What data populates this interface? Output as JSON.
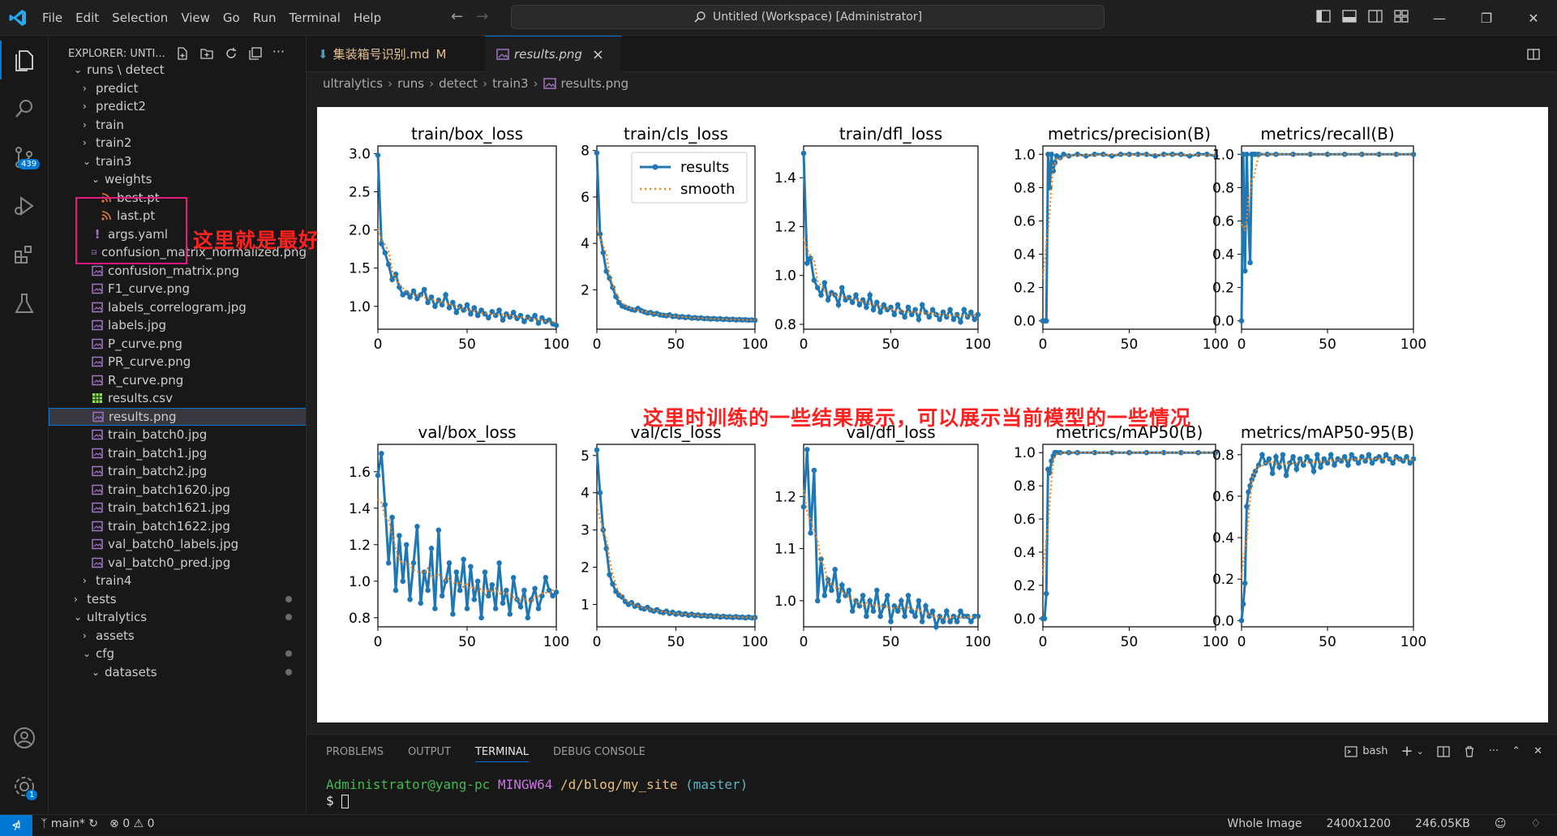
{
  "menu": [
    "File",
    "Edit",
    "Selection",
    "View",
    "Go",
    "Run",
    "Terminal",
    "Help"
  ],
  "search_title": "Untitled (Workspace) [Administrator]",
  "activity": {
    "scm_badge": "439",
    "settings_badge": "1"
  },
  "explorer": {
    "title": "EXPLORER: UNTI...",
    "rows": [
      {
        "label": "runs \\ detect",
        "indent": 1,
        "kind": "folder-open"
      },
      {
        "label": "predict",
        "indent": 2,
        "kind": "folder"
      },
      {
        "label": "predict2",
        "indent": 2,
        "kind": "folder"
      },
      {
        "label": "train",
        "indent": 2,
        "kind": "folder"
      },
      {
        "label": "train2",
        "indent": 2,
        "kind": "folder"
      },
      {
        "label": "train3",
        "indent": 2,
        "kind": "folder-open"
      },
      {
        "label": "weights",
        "indent": 3,
        "kind": "folder-open"
      },
      {
        "label": "best.pt",
        "indent": 4,
        "kind": "pt"
      },
      {
        "label": "last.pt",
        "indent": 4,
        "kind": "pt"
      },
      {
        "label": "args.yaml",
        "indent": 3,
        "kind": "yaml"
      },
      {
        "label": "confusion_matrix_normalized.png",
        "indent": 3,
        "kind": "img"
      },
      {
        "label": "confusion_matrix.png",
        "indent": 3,
        "kind": "img"
      },
      {
        "label": "F1_curve.png",
        "indent": 3,
        "kind": "img"
      },
      {
        "label": "labels_correlogram.jpg",
        "indent": 3,
        "kind": "img"
      },
      {
        "label": "labels.jpg",
        "indent": 3,
        "kind": "img"
      },
      {
        "label": "P_curve.png",
        "indent": 3,
        "kind": "img"
      },
      {
        "label": "PR_curve.png",
        "indent": 3,
        "kind": "img"
      },
      {
        "label": "R_curve.png",
        "indent": 3,
        "kind": "img"
      },
      {
        "label": "results.csv",
        "indent": 3,
        "kind": "csv"
      },
      {
        "label": "results.png",
        "indent": 3,
        "kind": "img",
        "selected": true
      },
      {
        "label": "train_batch0.jpg",
        "indent": 3,
        "kind": "img"
      },
      {
        "label": "train_batch1.jpg",
        "indent": 3,
        "kind": "img"
      },
      {
        "label": "train_batch2.jpg",
        "indent": 3,
        "kind": "img"
      },
      {
        "label": "train_batch1620.jpg",
        "indent": 3,
        "kind": "img"
      },
      {
        "label": "train_batch1621.jpg",
        "indent": 3,
        "kind": "img"
      },
      {
        "label": "train_batch1622.jpg",
        "indent": 3,
        "kind": "img"
      },
      {
        "label": "val_batch0_labels.jpg",
        "indent": 3,
        "kind": "img"
      },
      {
        "label": "val_batch0_pred.jpg",
        "indent": 3,
        "kind": "img"
      },
      {
        "label": "train4",
        "indent": 2,
        "kind": "folder"
      },
      {
        "label": "tests",
        "indent": 1,
        "kind": "folder",
        "dot": true
      },
      {
        "label": "ultralytics",
        "indent": 1,
        "kind": "folder-open",
        "dot": true
      },
      {
        "label": "assets",
        "indent": 2,
        "kind": "folder"
      },
      {
        "label": "cfg",
        "indent": 2,
        "kind": "folder-open",
        "dot": true
      },
      {
        "label": "datasets",
        "indent": 3,
        "kind": "folder-open",
        "dot": true
      }
    ]
  },
  "annotations": {
    "weights_note": "这里就是最好的模型和最后一次训练的模型",
    "results_note": "这里时训练的一些结果展示，可以展示当前模型的一些情况"
  },
  "tabs": [
    {
      "label": "集装箱号识别.md",
      "status": "M"
    },
    {
      "label": "results.png",
      "active": true
    }
  ],
  "breadcrumb": [
    "ultralytics",
    "runs",
    "detect",
    "train3",
    "results.png"
  ],
  "legend": {
    "results": "results",
    "smooth": "smooth"
  },
  "chart_data": [
    {
      "type": "line",
      "title": "train/box_loss",
      "xlim": [
        0,
        100
      ],
      "ylim": [
        0.7,
        3.1
      ],
      "yticks": [
        "1.0",
        "1.5",
        "2.0",
        "2.5",
        "3.0"
      ],
      "xticks": [
        "0",
        "50",
        "100"
      ],
      "x": [
        0,
        2,
        4,
        6,
        8,
        10,
        12,
        14,
        16,
        18,
        20,
        22,
        24,
        26,
        28,
        30,
        32,
        34,
        36,
        38,
        40,
        42,
        44,
        46,
        48,
        50,
        52,
        54,
        56,
        58,
        60,
        62,
        64,
        66,
        68,
        70,
        72,
        74,
        76,
        78,
        80,
        82,
        84,
        86,
        88,
        90,
        92,
        94,
        96,
        98,
        100
      ],
      "values": [
        2.98,
        1.82,
        1.7,
        1.55,
        1.35,
        1.42,
        1.25,
        1.15,
        1.18,
        1.12,
        1.2,
        1.1,
        1.15,
        1.22,
        1.05,
        1.12,
        1.0,
        1.08,
        1.02,
        1.15,
        0.98,
        1.05,
        0.92,
        1.0,
        0.95,
        1.02,
        0.9,
        0.98,
        0.88,
        0.95,
        0.9,
        0.85,
        0.93,
        0.88,
        0.95,
        0.82,
        0.9,
        0.86,
        0.92,
        0.84,
        0.88,
        0.8,
        0.86,
        0.83,
        0.88,
        0.78,
        0.85,
        0.8,
        0.82,
        0.77,
        0.75
      ]
    },
    {
      "type": "line",
      "title": "train/cls_loss",
      "xlim": [
        0,
        100
      ],
      "ylim": [
        0.3,
        8.2
      ],
      "yticks": [
        "2",
        "4",
        "6",
        "8"
      ],
      "xticks": [
        "0",
        "50",
        "100"
      ],
      "legend": true,
      "x": [
        0,
        2,
        4,
        6,
        8,
        10,
        12,
        14,
        16,
        18,
        20,
        22,
        24,
        26,
        28,
        30,
        32,
        34,
        36,
        38,
        40,
        42,
        44,
        46,
        48,
        50,
        52,
        54,
        56,
        58,
        60,
        62,
        64,
        66,
        68,
        70,
        72,
        74,
        76,
        78,
        80,
        82,
        84,
        86,
        88,
        90,
        92,
        94,
        96,
        98,
        100
      ],
      "values": [
        7.9,
        4.4,
        3.6,
        2.8,
        2.5,
        2.1,
        1.7,
        1.45,
        1.3,
        1.25,
        1.2,
        1.15,
        1.12,
        1.2,
        1.1,
        1.05,
        1.0,
        1.02,
        0.95,
        0.98,
        0.92,
        0.9,
        0.88,
        0.92,
        0.85,
        0.87,
        0.82,
        0.84,
        0.8,
        0.83,
        0.78,
        0.8,
        0.77,
        0.79,
        0.75,
        0.77,
        0.74,
        0.76,
        0.73,
        0.75,
        0.72,
        0.74,
        0.71,
        0.73,
        0.7,
        0.72,
        0.7,
        0.71,
        0.69,
        0.7,
        0.68
      ]
    },
    {
      "type": "line",
      "title": "train/dfl_loss",
      "xlim": [
        0,
        100
      ],
      "ylim": [
        0.78,
        1.53
      ],
      "yticks": [
        "0.8",
        "1.0",
        "1.2",
        "1.4"
      ],
      "xticks": [
        "0",
        "50",
        "100"
      ],
      "x": [
        0,
        2,
        4,
        6,
        8,
        10,
        12,
        14,
        16,
        18,
        20,
        22,
        24,
        26,
        28,
        30,
        32,
        34,
        36,
        38,
        40,
        42,
        44,
        46,
        48,
        50,
        52,
        54,
        56,
        58,
        60,
        62,
        64,
        66,
        68,
        70,
        72,
        74,
        76,
        78,
        80,
        82,
        84,
        86,
        88,
        90,
        92,
        94,
        96,
        98,
        100
      ],
      "values": [
        1.5,
        1.05,
        1.07,
        0.98,
        0.95,
        0.92,
        0.97,
        0.9,
        0.93,
        0.92,
        0.88,
        0.95,
        0.9,
        0.91,
        0.89,
        0.92,
        0.88,
        0.9,
        0.87,
        0.92,
        0.86,
        0.89,
        0.85,
        0.88,
        0.86,
        0.87,
        0.84,
        0.88,
        0.85,
        0.83,
        0.87,
        0.84,
        0.86,
        0.82,
        0.88,
        0.85,
        0.83,
        0.86,
        0.84,
        0.82,
        0.85,
        0.83,
        0.86,
        0.82,
        0.84,
        0.81,
        0.86,
        0.83,
        0.85,
        0.82,
        0.84
      ]
    },
    {
      "type": "line",
      "title": "metrics/precision(B)",
      "xlim": [
        0,
        100
      ],
      "ylim": [
        -0.05,
        1.05
      ],
      "yticks": [
        "0.0",
        "0.2",
        "0.4",
        "0.6",
        "0.8",
        "1.0"
      ],
      "xticks": [
        "0",
        "50",
        "100"
      ],
      "x": [
        0,
        1,
        2,
        3,
        4,
        5,
        6,
        7,
        8,
        10,
        12,
        15,
        20,
        25,
        30,
        35,
        40,
        45,
        50,
        55,
        60,
        65,
        70,
        75,
        80,
        85,
        90,
        95,
        100
      ],
      "values": [
        0.0,
        0.0,
        0.0,
        1.0,
        0.8,
        1.0,
        0.9,
        0.95,
        0.99,
        0.98,
        1.0,
        0.99,
        1.0,
        0.99,
        1.0,
        1.0,
        0.99,
        1.0,
        1.0,
        1.0,
        1.0,
        0.99,
        1.0,
        1.0,
        1.0,
        0.99,
        1.0,
        1.0,
        0.99
      ]
    },
    {
      "type": "line",
      "title": "metrics/recall(B)",
      "xlim": [
        0,
        100
      ],
      "ylim": [
        -0.05,
        1.05
      ],
      "yticks": [
        "0.0",
        "0.2",
        "0.4",
        "0.6",
        "0.8",
        "1.0"
      ],
      "xticks": [
        "0",
        "50",
        "100"
      ],
      "x": [
        0,
        1,
        2,
        3,
        4,
        5,
        6,
        7,
        8,
        10,
        15,
        20,
        30,
        40,
        50,
        60,
        70,
        80,
        90,
        100
      ],
      "values": [
        0.0,
        1.0,
        0.3,
        1.0,
        0.6,
        0.35,
        1.0,
        1.0,
        1.0,
        1.0,
        1.0,
        1.0,
        1.0,
        1.0,
        1.0,
        1.0,
        1.0,
        1.0,
        1.0,
        1.0
      ]
    },
    {
      "type": "line",
      "title": "val/box_loss",
      "xlim": [
        0,
        100
      ],
      "ylim": [
        0.75,
        1.75
      ],
      "yticks": [
        "0.8",
        "1.0",
        "1.2",
        "1.4",
        "1.6"
      ],
      "xticks": [
        "0",
        "50",
        "100"
      ],
      "x": [
        0,
        2,
        4,
        6,
        8,
        10,
        12,
        14,
        16,
        18,
        20,
        22,
        24,
        26,
        28,
        30,
        32,
        34,
        36,
        38,
        40,
        42,
        44,
        46,
        48,
        50,
        52,
        54,
        56,
        58,
        60,
        62,
        64,
        66,
        68,
        70,
        72,
        74,
        76,
        78,
        80,
        82,
        84,
        86,
        88,
        90,
        92,
        94,
        96,
        98,
        100
      ],
      "values": [
        1.58,
        1.7,
        1.42,
        1.1,
        1.35,
        0.95,
        1.25,
        1.0,
        1.2,
        0.9,
        1.1,
        1.3,
        0.88,
        1.05,
        0.95,
        1.18,
        0.85,
        1.28,
        0.92,
        1.0,
        1.1,
        0.82,
        1.05,
        0.95,
        1.12,
        0.85,
        1.08,
        0.9,
        1.0,
        0.8,
        1.05,
        0.92,
        0.98,
        0.85,
        1.1,
        0.88,
        0.95,
        0.82,
        1.02,
        0.9,
        0.86,
        0.95,
        0.8,
        0.9,
        0.96,
        0.85,
        0.92,
        1.02,
        0.95,
        0.92,
        0.94
      ]
    },
    {
      "type": "line",
      "title": "val/cls_loss",
      "xlim": [
        0,
        100
      ],
      "ylim": [
        0.4,
        5.3
      ],
      "yticks": [
        "1",
        "2",
        "3",
        "4",
        "5"
      ],
      "xticks": [
        "0",
        "50",
        "100"
      ],
      "x": [
        0,
        2,
        4,
        6,
        8,
        10,
        12,
        14,
        16,
        18,
        20,
        22,
        24,
        26,
        28,
        30,
        32,
        34,
        36,
        38,
        40,
        42,
        44,
        46,
        48,
        50,
        52,
        54,
        56,
        58,
        60,
        62,
        64,
        66,
        68,
        70,
        72,
        74,
        76,
        78,
        80,
        82,
        84,
        86,
        88,
        90,
        92,
        94,
        96,
        98,
        100
      ],
      "values": [
        5.15,
        4.0,
        3.0,
        2.5,
        1.8,
        1.55,
        1.35,
        1.25,
        1.2,
        1.08,
        1.0,
        1.05,
        0.95,
        0.98,
        0.9,
        0.88,
        0.92,
        0.85,
        0.82,
        0.86,
        0.8,
        0.78,
        0.82,
        0.76,
        0.79,
        0.74,
        0.77,
        0.73,
        0.75,
        0.71,
        0.74,
        0.7,
        0.72,
        0.69,
        0.71,
        0.68,
        0.7,
        0.67,
        0.69,
        0.66,
        0.68,
        0.66,
        0.67,
        0.65,
        0.67,
        0.65,
        0.66,
        0.64,
        0.66,
        0.64,
        0.65
      ]
    },
    {
      "type": "line",
      "title": "val/dfl_loss",
      "xlim": [
        0,
        100
      ],
      "ylim": [
        0.95,
        1.3
      ],
      "yticks": [
        "1.0",
        "1.1",
        "1.2"
      ],
      "xticks": [
        "0",
        "50",
        "100"
      ],
      "x": [
        0,
        2,
        4,
        6,
        8,
        10,
        12,
        14,
        16,
        18,
        20,
        22,
        24,
        26,
        28,
        30,
        32,
        34,
        36,
        38,
        40,
        42,
        44,
        46,
        48,
        50,
        52,
        54,
        56,
        58,
        60,
        62,
        64,
        66,
        68,
        70,
        72,
        74,
        76,
        78,
        80,
        82,
        84,
        86,
        88,
        90,
        92,
        94,
        96,
        98,
        100
      ],
      "values": [
        1.18,
        1.29,
        1.13,
        1.25,
        1.0,
        1.08,
        1.01,
        1.04,
        1.02,
        1.06,
        1.0,
        1.03,
        1.01,
        1.02,
        0.98,
        1.0,
        0.99,
        1.01,
        0.97,
        1.0,
        0.98,
        1.02,
        0.97,
        0.99,
        1.01,
        0.96,
        0.99,
        0.98,
        1.0,
        0.97,
        1.01,
        0.98,
        0.97,
        1.0,
        0.96,
        0.99,
        0.97,
        0.98,
        0.95,
        0.97,
        0.96,
        0.98,
        0.96,
        0.97,
        0.96,
        0.98,
        0.97,
        0.97,
        0.96,
        0.97,
        0.97
      ]
    },
    {
      "type": "line",
      "title": "metrics/mAP50(B)",
      "xlim": [
        0,
        100
      ],
      "ylim": [
        -0.05,
        1.05
      ],
      "yticks": [
        "0.0",
        "0.2",
        "0.4",
        "0.6",
        "0.8",
        "1.0"
      ],
      "xticks": [
        "0",
        "50",
        "100"
      ],
      "x": [
        0,
        1,
        2,
        3,
        4,
        5,
        6,
        7,
        8,
        10,
        15,
        20,
        30,
        40,
        50,
        60,
        70,
        80,
        90,
        100
      ],
      "values": [
        0.0,
        0.0,
        0.15,
        0.9,
        0.88,
        0.95,
        0.98,
        1.0,
        1.0,
        1.0,
        1.0,
        1.0,
        1.0,
        1.0,
        1.0,
        1.0,
        1.0,
        1.0,
        1.0,
        1.0
      ]
    },
    {
      "type": "line",
      "title": "metrics/mAP50-95(B)",
      "xlim": [
        0,
        100
      ],
      "ylim": [
        -0.03,
        0.85
      ],
      "yticks": [
        "0.0",
        "0.2",
        "0.4",
        "0.6",
        "0.8"
      ],
      "xticks": [
        "0",
        "50",
        "100"
      ],
      "x": [
        0,
        1,
        2,
        3,
        4,
        5,
        6,
        7,
        8,
        10,
        12,
        14,
        16,
        18,
        20,
        22,
        24,
        26,
        28,
        30,
        32,
        34,
        36,
        38,
        40,
        42,
        44,
        46,
        48,
        50,
        52,
        54,
        56,
        58,
        60,
        62,
        64,
        66,
        68,
        70,
        72,
        74,
        76,
        78,
        80,
        82,
        84,
        86,
        88,
        90,
        92,
        94,
        96,
        98,
        100
      ],
      "values": [
        0.0,
        0.08,
        0.18,
        0.55,
        0.62,
        0.65,
        0.68,
        0.7,
        0.72,
        0.75,
        0.8,
        0.76,
        0.78,
        0.71,
        0.79,
        0.74,
        0.8,
        0.7,
        0.76,
        0.79,
        0.73,
        0.78,
        0.75,
        0.79,
        0.77,
        0.72,
        0.8,
        0.74,
        0.78,
        0.76,
        0.8,
        0.75,
        0.78,
        0.77,
        0.79,
        0.75,
        0.8,
        0.78,
        0.76,
        0.79,
        0.77,
        0.8,
        0.76,
        0.78,
        0.79,
        0.77,
        0.8,
        0.78,
        0.76,
        0.79,
        0.78,
        0.77,
        0.79,
        0.76,
        0.78
      ]
    }
  ],
  "panel": {
    "tabs": [
      "PROBLEMS",
      "OUTPUT",
      "TERMINAL",
      "DEBUG CONSOLE"
    ],
    "active": "TERMINAL",
    "shell": "bash",
    "prompt_user": "Administrator@yang-pc",
    "prompt_env": "MINGW64",
    "prompt_path": "/d/blog/my_site",
    "prompt_branch": "(master)",
    "prompt_symbol": "$"
  },
  "status": {
    "branch": "main*",
    "errors": "0",
    "warnings": "0",
    "zoom": "Whole Image",
    "dims": "2400x1200",
    "size": "246.05KB"
  },
  "colors": {
    "accent": "#0078d4",
    "series": "#1f77b4",
    "smooth": "#ff7f0e",
    "annotation": "#ff2020"
  }
}
